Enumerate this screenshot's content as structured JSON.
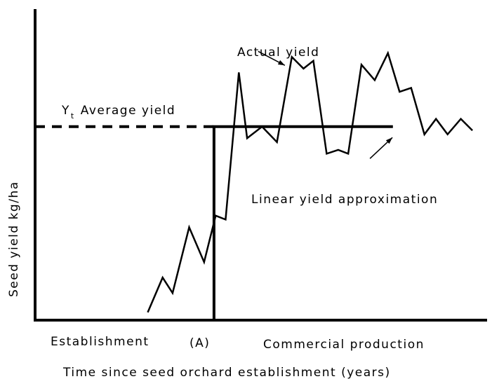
{
  "chart_data": {
    "type": "line",
    "title": "",
    "xlabel": "Time since seed orchard establishment (years)",
    "ylabel": "Seed yield kg/ha",
    "x_regions": [
      "Establishment",
      "(A)",
      "Commercial production"
    ],
    "average_yield_label": {
      "symbol": "Y",
      "subscript": "t",
      "text": "Average yield"
    },
    "series": [
      {
        "name": "Actual yield",
        "style": "solid-zigzag",
        "x": [
          0.0,
          0.9,
          1.5,
          2.5,
          3.4,
          4.1,
          4.7,
          5.5,
          6.0,
          6.9,
          7.8,
          8.7,
          9.4,
          10.0,
          10.8,
          11.5,
          12.1,
          12.9,
          13.7,
          14.5,
          15.2,
          15.9,
          16.7,
          17.4,
          18.1,
          18.9,
          19.6
        ],
        "y": [
          0.1,
          0.55,
          0.35,
          1.2,
          0.75,
          1.35,
          1.3,
          3.2,
          2.35,
          2.5,
          2.3,
          3.4,
          3.25,
          3.35,
          2.15,
          2.2,
          2.15,
          3.3,
          3.1,
          3.45,
          2.95,
          3.0,
          2.4,
          2.6,
          2.4,
          2.6,
          2.45
        ]
      },
      {
        "name": "Linear yield approximation",
        "style": "solid-thick",
        "x": [
          4.0,
          4.0,
          4.0,
          14.8
        ],
        "y": [
          0.0,
          2.5,
          2.5,
          2.5
        ]
      },
      {
        "name": "Average yield (dashed)",
        "style": "dashed",
        "x": [
          -6.8,
          4.0
        ],
        "y": [
          2.5,
          2.5
        ]
      }
    ],
    "point_A_x": 4.0,
    "average_yield_y": 2.5,
    "xlim": [
      -6.8,
      20.4
    ],
    "ylim": [
      0,
      4.0
    ],
    "grid": false,
    "legend": "none",
    "annotations": [
      {
        "text": "Actual yield",
        "arrow_to_x": 8.7,
        "arrow_to_y": 3.4
      },
      {
        "text": "Linear yield approximation",
        "arrow_to_x": 14.6,
        "arrow_to_y": 2.45
      }
    ],
    "colors": {
      "line": "#000000",
      "background": "#ffffff"
    }
  }
}
